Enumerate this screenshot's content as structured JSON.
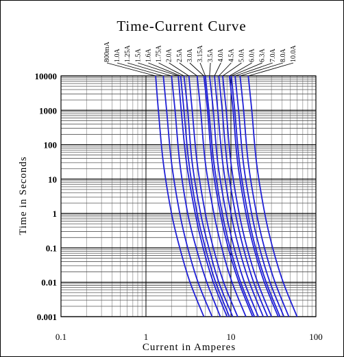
{
  "chart_data": {
    "type": "line",
    "title": "Time-Current Curve",
    "xlabel": "Current in Amperes",
    "ylabel": "Time in Seconds",
    "x_scale": "log",
    "y_scale": "log",
    "xlim": [
      0.1,
      100
    ],
    "ylim": [
      0.001,
      10000
    ],
    "x_ticks": [
      {
        "value": 0.1,
        "label": "0.1"
      },
      {
        "value": 1,
        "label": "1"
      },
      {
        "value": 10,
        "label": "10"
      },
      {
        "value": 100,
        "label": "100"
      }
    ],
    "y_ticks": [
      {
        "value": 10000,
        "label": "10000"
      },
      {
        "value": 1000,
        "label": "1000"
      },
      {
        "value": 100,
        "label": "100"
      },
      {
        "value": 10,
        "label": "10"
      },
      {
        "value": 1,
        "label": "1"
      },
      {
        "value": 0.1,
        "label": "0.1"
      },
      {
        "value": 0.01,
        "label": "0.01"
      },
      {
        "value": 0.001,
        "label": "0.001"
      }
    ],
    "grid": true,
    "line_color": "#1f1fd6",
    "series": [
      {
        "name": "800mA",
        "x": [
          1.3,
          1.4,
          1.6,
          2.0,
          2.5,
          3.3,
          4.8
        ],
        "y": [
          10000,
          1000,
          30,
          1,
          0.1,
          0.01,
          0.001
        ]
      },
      {
        "name": "1.0A",
        "x": [
          1.6,
          1.75,
          2.0,
          2.5,
          3.1,
          4.1,
          6.0
        ],
        "y": [
          10000,
          1000,
          30,
          1,
          0.1,
          0.01,
          0.001
        ]
      },
      {
        "name": "1.25A",
        "x": [
          2.0,
          2.2,
          2.5,
          3.1,
          3.9,
          5.2,
          7.5
        ],
        "y": [
          10000,
          1000,
          30,
          1,
          0.1,
          0.01,
          0.001
        ]
      },
      {
        "name": "1.5A",
        "x": [
          2.4,
          2.6,
          3.0,
          3.8,
          4.7,
          6.2,
          9.0
        ],
        "y": [
          10000,
          1000,
          30,
          1,
          0.1,
          0.01,
          0.001
        ]
      },
      {
        "name": "1.6A",
        "x": [
          2.56,
          2.8,
          3.2,
          4.0,
          5.0,
          6.6,
          9.6
        ],
        "y": [
          10000,
          1000,
          30,
          1,
          0.1,
          0.01,
          0.001
        ]
      },
      {
        "name": "1.75A",
        "x": [
          2.8,
          3.1,
          3.5,
          4.4,
          5.5,
          7.2,
          10.5
        ],
        "y": [
          10000,
          1000,
          30,
          1,
          0.1,
          0.01,
          0.001
        ]
      },
      {
        "name": "2.0A",
        "x": [
          3.2,
          3.5,
          4.0,
          5.0,
          6.2,
          8.2,
          12.0
        ],
        "y": [
          10000,
          1000,
          30,
          1,
          0.1,
          0.01,
          0.001
        ]
      },
      {
        "name": "2.5A",
        "x": [
          4.0,
          4.4,
          5.0,
          6.3,
          7.8,
          10.3,
          15.0
        ],
        "y": [
          10000,
          1000,
          30,
          1,
          0.1,
          0.01,
          0.001
        ]
      },
      {
        "name": "3.0A",
        "x": [
          4.8,
          5.3,
          6.0,
          7.5,
          9.3,
          12.4,
          18.0
        ],
        "y": [
          10000,
          1000,
          30,
          1,
          0.1,
          0.01,
          0.001
        ]
      },
      {
        "name": "3.15A",
        "x": [
          5.0,
          5.5,
          6.3,
          7.9,
          9.8,
          13.0,
          18.9
        ],
        "y": [
          10000,
          1000,
          30,
          1,
          0.1,
          0.01,
          0.001
        ]
      },
      {
        "name": "3.5A",
        "x": [
          5.6,
          6.2,
          7.0,
          8.8,
          10.9,
          14.4,
          21.0
        ],
        "y": [
          10000,
          1000,
          30,
          1,
          0.1,
          0.01,
          0.001
        ]
      },
      {
        "name": "4.0A",
        "x": [
          6.4,
          7.0,
          8.0,
          10.0,
          12.4,
          16.5,
          24.0
        ],
        "y": [
          10000,
          1000,
          30,
          1,
          0.1,
          0.01,
          0.001
        ]
      },
      {
        "name": "4.5A",
        "x": [
          7.2,
          7.9,
          9.0,
          11.3,
          14.0,
          18.5,
          27.0
        ],
        "y": [
          10000,
          1000,
          30,
          1,
          0.1,
          0.01,
          0.001
        ]
      },
      {
        "name": "5.0A",
        "x": [
          8.0,
          8.8,
          10.0,
          12.5,
          15.5,
          20.6,
          30.0
        ],
        "y": [
          10000,
          1000,
          30,
          1,
          0.1,
          0.01,
          0.001
        ]
      },
      {
        "name": "6.0A",
        "x": [
          9.6,
          10.6,
          12.0,
          15.0,
          18.6,
          24.7,
          36.0
        ],
        "y": [
          10000,
          1000,
          30,
          1,
          0.1,
          0.01,
          0.001
        ]
      },
      {
        "name": "6.3A",
        "x": [
          10.1,
          11.1,
          12.6,
          15.8,
          19.5,
          26.0,
          37.8
        ],
        "y": [
          10000,
          1000,
          30,
          1,
          0.1,
          0.01,
          0.001
        ]
      },
      {
        "name": "7.0A",
        "x": [
          11.2,
          12.3,
          14.0,
          17.5,
          21.7,
          28.8,
          42.0
        ],
        "y": [
          10000,
          1000,
          30,
          1,
          0.1,
          0.01,
          0.001
        ]
      },
      {
        "name": "8.0A",
        "x": [
          12.8,
          14.1,
          16.0,
          20.0,
          24.8,
          33.0,
          48.0
        ],
        "y": [
          10000,
          1000,
          30,
          1,
          0.1,
          0.01,
          0.001
        ]
      },
      {
        "name": "10.0A",
        "x": [
          16.0,
          17.6,
          20.0,
          25.0,
          31.0,
          41.2,
          60.0
        ],
        "y": [
          10000,
          1000,
          30,
          1,
          0.1,
          0.01,
          0.001
        ]
      }
    ]
  }
}
